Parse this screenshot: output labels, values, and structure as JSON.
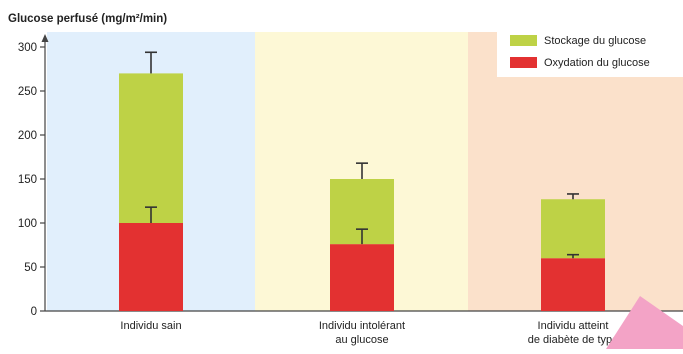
{
  "chart_data": {
    "type": "bar",
    "stacked": true,
    "ylabel": "Glucose perfusé (mg/m²/min)",
    "ylim": [
      0,
      300
    ],
    "yticks": [
      0,
      50,
      100,
      150,
      200,
      250,
      300
    ],
    "grid": false,
    "legend_position": "top-right",
    "categories": [
      [
        "Individu sain"
      ],
      [
        "Individu intolérant",
        "au glucose"
      ],
      [
        "Individu atteint",
        "de diabète de type"
      ]
    ],
    "category_backgrounds": [
      "#e1effc",
      "#fdf8d6",
      "#fbe1cb"
    ],
    "series": [
      {
        "name": "Oxydation du glucose",
        "color": "#e33131",
        "values": [
          100,
          76,
          60
        ],
        "error_top": [
          118,
          93,
          64
        ]
      },
      {
        "name": "Stockage du glucose",
        "color": "#bed246",
        "values": [
          170,
          74,
          67
        ],
        "error_top": [
          294,
          168,
          133
        ]
      }
    ],
    "legend": [
      {
        "label": "Stockage du glucose",
        "color": "#bed246"
      },
      {
        "label": "Oxydation du glucose",
        "color": "#e33131"
      }
    ]
  }
}
